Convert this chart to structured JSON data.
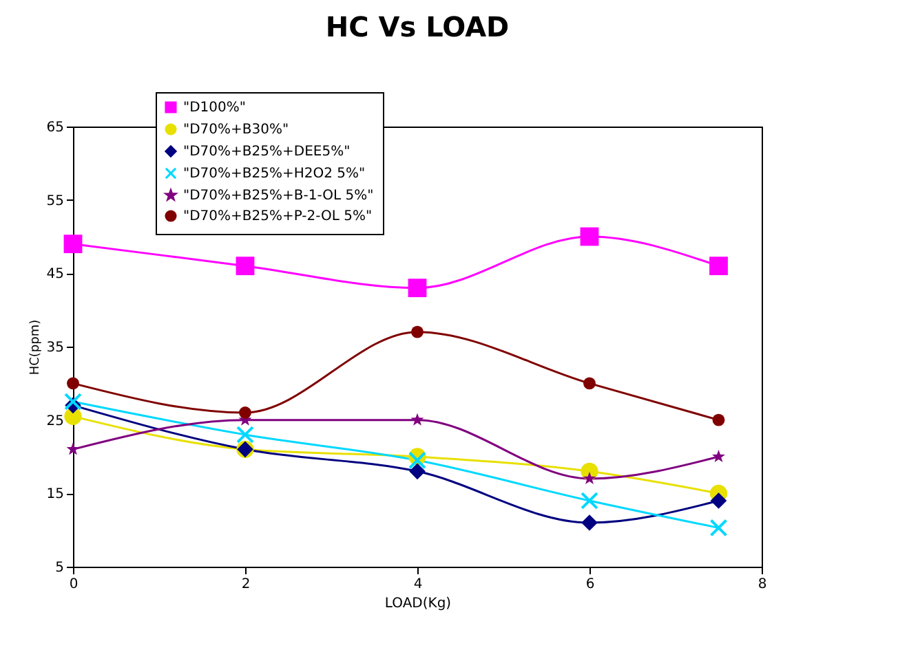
{
  "chart_data": {
    "type": "line",
    "title": "HC Vs LOAD",
    "xlabel": "LOAD(Kg)",
    "ylabel": "HC(ppm)",
    "x": [
      0,
      2,
      4,
      6,
      7.5
    ],
    "xlim": [
      0,
      8
    ],
    "xticks": [
      0,
      2,
      4,
      6,
      8
    ],
    "ylim": [
      5,
      65
    ],
    "yticks": [
      5,
      15,
      25,
      35,
      45,
      55,
      65
    ],
    "grid": false,
    "legend": "top",
    "series": [
      {
        "name": "\"D100%\"",
        "color": "#ff00ff",
        "marker": "square",
        "values": [
          49,
          46,
          43,
          50,
          46
        ]
      },
      {
        "name": "\"D70%+B30%\"",
        "color": "#e8e000",
        "marker": "circle",
        "values": [
          25.5,
          21,
          20,
          18,
          15
        ]
      },
      {
        "name": "\"D70%+B25%+DEE5%\"",
        "color": "#000080",
        "marker": "diamond",
        "values": [
          27,
          21,
          18,
          11,
          14
        ]
      },
      {
        "name": "\"D70%+B25%+H2O2 5%\"",
        "color": "#00d8ff",
        "marker": "cross",
        "values": [
          27.5,
          23,
          19.5,
          14,
          10.3
        ]
      },
      {
        "name": "\"D70%+B25%+B-1-OL 5%\"",
        "color": "#800080",
        "marker": "star",
        "values": [
          21,
          25,
          25,
          17,
          20
        ]
      },
      {
        "name": "\"D70%+B25%+P-2-OL 5%\"",
        "color": "#800000",
        "marker": "circle",
        "values": [
          30,
          26,
          37,
          30,
          25
        ]
      }
    ]
  }
}
